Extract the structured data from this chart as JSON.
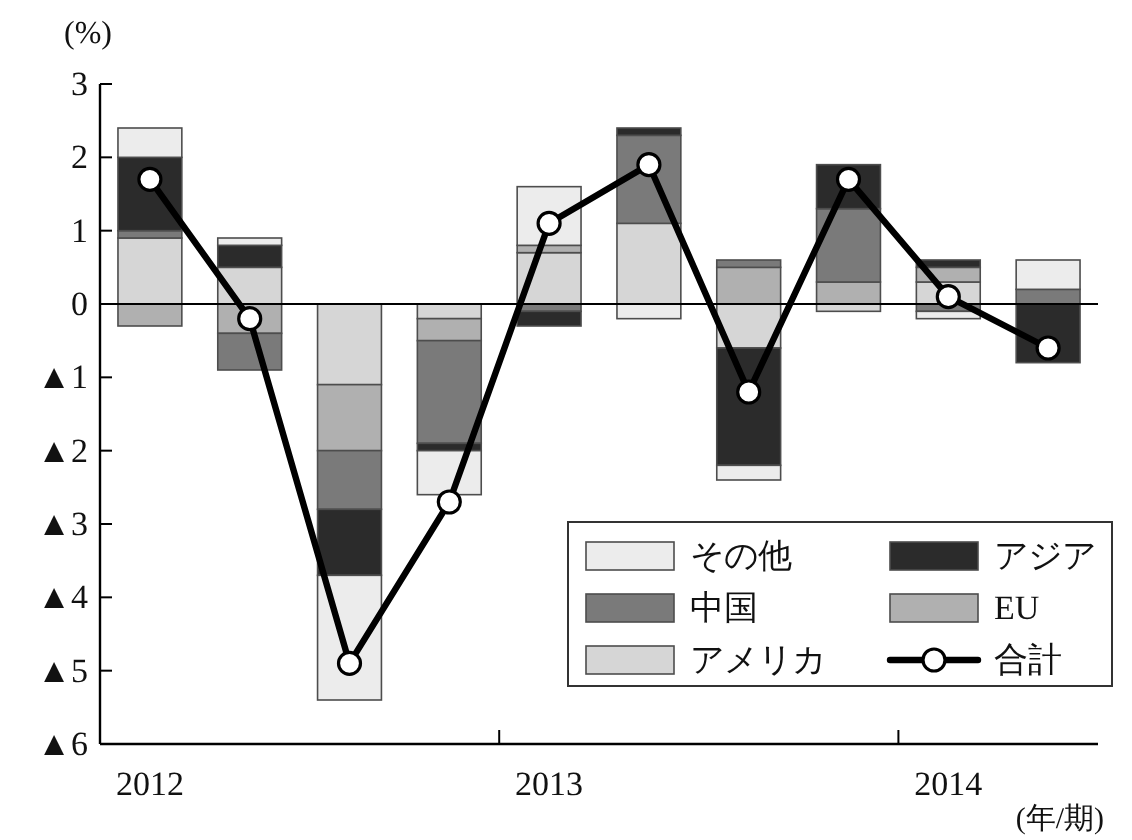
{
  "chart_data": {
    "type": "bar",
    "stacked": true,
    "categories": [
      "2012",
      null,
      null,
      null,
      "2013",
      null,
      null,
      null,
      "2014",
      null
    ],
    "series": [
      {
        "name": "アメリカ",
        "color": "#d6d6d6",
        "values": [
          0.9,
          0.5,
          -1.1,
          -0.2,
          0.7,
          1.1,
          -0.6,
          -0.1,
          0.3,
          null
        ]
      },
      {
        "name": "EU",
        "color": "#b0b0b0",
        "values": [
          -0.3,
          -0.4,
          -0.9,
          -0.3,
          0.1,
          null,
          0.5,
          0.3,
          0.2,
          null
        ]
      },
      {
        "name": "中国",
        "color": "#7a7a7a",
        "values": [
          0.1,
          -0.5,
          -0.8,
          -1.4,
          -0.1,
          1.2,
          0.1,
          1.0,
          -0.1,
          0.2
        ]
      },
      {
        "name": "アジア",
        "color": "#2b2b2b",
        "values": [
          1.0,
          0.3,
          -0.9,
          -0.1,
          -0.2,
          0.1,
          -1.6,
          0.6,
          0.1,
          -0.8
        ]
      },
      {
        "name": "その他",
        "color": "#ececec",
        "values": [
          0.4,
          0.1,
          -1.7,
          -0.6,
          0.8,
          -0.2,
          -0.2,
          null,
          -0.1,
          0.4
        ]
      },
      {
        "name": "合計",
        "type": "line",
        "color": "#000000",
        "values": [
          1.7,
          -0.2,
          -4.9,
          -2.7,
          1.1,
          1.9,
          -1.2,
          1.7,
          0.1,
          -0.6
        ]
      }
    ],
    "marker": "circle",
    "ylim": [
      -6,
      3
    ],
    "yticks": [
      {
        "value": -6,
        "label": "▲6"
      },
      {
        "value": -5,
        "label": "▲5"
      },
      {
        "value": -4,
        "label": "▲4"
      },
      {
        "value": -3,
        "label": "▲3"
      },
      {
        "value": -2,
        "label": "▲2"
      },
      {
        "value": -1,
        "label": "▲1"
      },
      0,
      1,
      2,
      3
    ],
    "ylabel": "(%)",
    "xlabel": "(年/期)",
    "ref_lines": [
      {
        "axis": "y",
        "value": 0,
        "color": "#000000"
      }
    ],
    "legend": "bottom right"
  }
}
